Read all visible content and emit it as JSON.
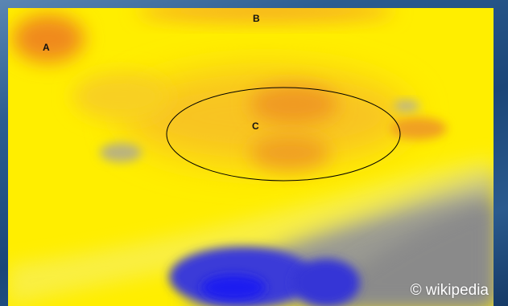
{
  "map": {
    "labels": {
      "a": "A",
      "b": "B",
      "c": "C"
    },
    "credit": "© wikipedia",
    "colors": {
      "warm_core": "#f08a1e",
      "orange": "#f6b020",
      "yellow": "#ffee00",
      "pale_yellow": "#f4f07a",
      "gray": "#8a8a8a",
      "blue": "#2a2ae8",
      "frame_blue": "#1c4a78",
      "outline": "#000000"
    },
    "legend": null
  }
}
